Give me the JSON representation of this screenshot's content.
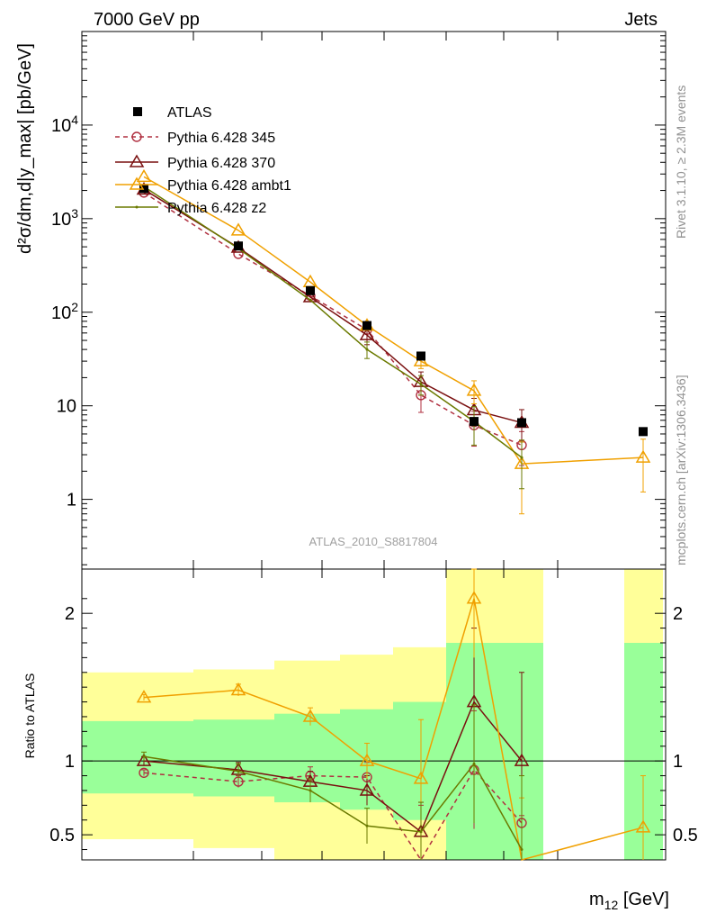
{
  "header": {
    "left": "7000 GeV pp",
    "right": "Jets"
  },
  "side_text": {
    "rivet": "Rivet 3.1.10, ≥ 2.3M events",
    "mcplots": "mcplots.cern.ch [arXiv:1306.3436]"
  },
  "watermark": "ATLAS_2010_S8817804",
  "xlabel": "m",
  "xlabel_sub": "12",
  "xlabel_unit": " [GeV]",
  "ylabel_top": "d²σ/dm,d|y_max| [pb/GeV]",
  "ylabel_bottom": "Ratio to ATLAS",
  "colors": {
    "atlas": "#000000",
    "p345": "#b03040",
    "p370": "#7a1010",
    "ambt1": "#f0a000",
    "z2": "#6b7a00",
    "band_inner": "#99ff99",
    "band_outer": "#ffff99"
  },
  "chart_data": [
    {
      "type": "line",
      "scale": "log-y",
      "ylim": [
        0.18,
        100000
      ],
      "yticks": [
        {
          "v": 1,
          "label": "1"
        },
        {
          "v": 10,
          "label": "10"
        },
        {
          "v": 100,
          "label": "10^2"
        },
        {
          "v": 1000,
          "label": "10^3"
        },
        {
          "v": 10000,
          "label": "10^4"
        }
      ],
      "legend": {
        "placement": "top-left",
        "entries": [
          "ATLAS",
          "Pythia 6.428 345",
          "Pythia 6.428 370",
          "Pythia 6.428 ambt1",
          "Pythia 6.428 z2"
        ]
      },
      "bins": [
        1,
        2,
        3,
        4,
        5,
        6,
        7,
        8
      ],
      "atlas": [
        2100,
        510,
        170,
        72,
        34,
        6.8,
        6.6,
        5.3
      ],
      "series": [
        {
          "name": "Pythia 6.428 345",
          "key": "p345",
          "style": "dashed-circle",
          "values": [
            1900,
            420,
            150,
            65,
            13,
            6.2,
            3.8,
            null
          ],
          "errors": [
            null,
            null,
            null,
            null,
            4.5,
            2.5,
            1.5,
            null
          ]
        },
        {
          "name": "Pythia 6.428 370",
          "key": "p370",
          "style": "solid-triangle",
          "values": [
            2050,
            490,
            145,
            57,
            18,
            9,
            6.6,
            null
          ],
          "errors": [
            null,
            null,
            null,
            12,
            5,
            3,
            2.5,
            null
          ]
        },
        {
          "name": "Pythia 6.428 ambt1",
          "key": "ambt1",
          "style": "solid-triangle",
          "values": [
            2800,
            750,
            210,
            72,
            30,
            14.5,
            2.4,
            2.8
          ],
          "errors": [
            null,
            null,
            null,
            null,
            5,
            4,
            1.7,
            1.6
          ]
        },
        {
          "name": "Pythia 6.428 z2",
          "key": "z2",
          "style": "solid-dot",
          "values": [
            2200,
            480,
            135,
            40,
            17,
            6.8,
            2.8,
            null
          ],
          "errors": [
            null,
            null,
            null,
            8,
            4,
            3,
            1.5,
            null
          ]
        }
      ]
    },
    {
      "type": "line",
      "ylabel": "Ratio to ATLAS",
      "ylim": [
        0.33,
        2.3
      ],
      "yticks": [
        {
          "v": 0.5,
          "label": "0.5"
        },
        {
          "v": 1,
          "label": "1"
        },
        {
          "v": 2,
          "label": "2"
        }
      ],
      "bands": [
        {
          "bin": 1,
          "inner": [
            0.78,
            1.27
          ],
          "outer": [
            0.47,
            1.6
          ]
        },
        {
          "bin": 2,
          "inner": [
            0.76,
            1.28
          ],
          "outer": [
            0.41,
            1.62
          ]
        },
        {
          "bin": 3,
          "inner": [
            0.72,
            1.32
          ],
          "outer": [
            0.33,
            1.68
          ]
        },
        {
          "bin": 4,
          "inner": [
            0.67,
            1.35
          ],
          "outer": [
            0.33,
            1.72
          ]
        },
        {
          "bin": 5,
          "inner": [
            0.6,
            1.4
          ],
          "outer": [
            0.33,
            1.77
          ]
        },
        {
          "bin": 6,
          "inner": [
            0.33,
            1.8
          ],
          "outer": [
            0.33,
            2.3
          ]
        },
        {
          "bin": 7,
          "inner": [
            0.33,
            1.8
          ],
          "outer": [
            0.33,
            2.3
          ]
        },
        {
          "bin": 8,
          "inner": [
            0.33,
            1.8
          ],
          "outer": [
            0.33,
            2.3
          ]
        }
      ],
      "series": [
        {
          "name": "Pythia 6.428 345",
          "key": "p345",
          "values": [
            0.92,
            0.86,
            0.9,
            0.89,
            0.3,
            0.94,
            0.58,
            null
          ],
          "errors": [
            0.02,
            0.04,
            0.06,
            0.1,
            0.4,
            0.4,
            0.05,
            null
          ]
        },
        {
          "name": "Pythia 6.428 370",
          "key": "p370",
          "values": [
            1.0,
            0.94,
            0.86,
            0.8,
            0.52,
            1.4,
            1.0,
            null
          ],
          "errors": [
            0.03,
            0.05,
            0.07,
            0.1,
            0.2,
            0.5,
            0.6,
            null
          ]
        },
        {
          "name": "Pythia 6.428 ambt1",
          "key": "ambt1",
          "values": [
            1.43,
            1.48,
            1.3,
            1.0,
            0.88,
            2.1,
            0.25,
            0.55
          ],
          "errors": [
            0.02,
            0.04,
            0.06,
            0.12,
            0.4,
            0.4,
            0.5,
            0.35
          ]
        },
        {
          "name": "Pythia 6.428 z2",
          "key": "z2",
          "values": [
            1.03,
            0.93,
            0.8,
            0.56,
            0.52,
            0.98,
            0.4,
            null
          ],
          "errors": [
            0.03,
            0.05,
            0.08,
            0.12,
            0.2,
            0.4,
            0.5,
            null
          ]
        }
      ]
    }
  ]
}
